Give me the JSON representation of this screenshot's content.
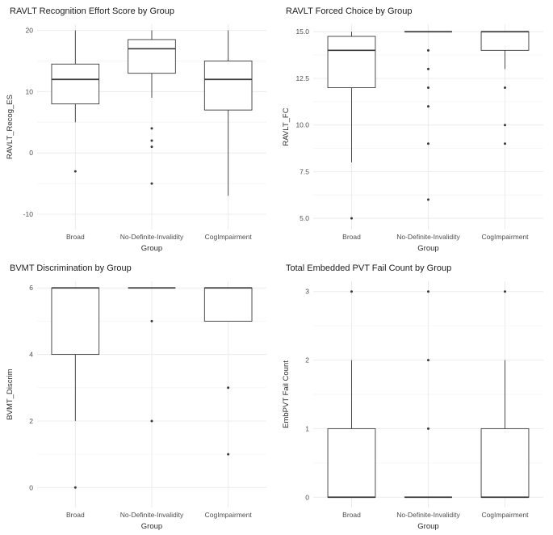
{
  "figure": {
    "background": "#ffffff"
  },
  "style": {
    "box_stroke": "#3a3a3a",
    "outlier_color": "#3a3a3a",
    "grid_color": "#ececec",
    "minor_grid_color": "#f6f6f6",
    "tick_color": "#4d4d4d",
    "axis_title_color": "#2b2b2b",
    "title_color": "#1d1d1d"
  },
  "chart_data": [
    {
      "type": "boxplot",
      "title": "RAVLT Recognition Effort Score by Group",
      "xlabel": "Group",
      "ylabel": "RAVLT_Recog_ES",
      "ylim": [
        -12.5,
        21
      ],
      "yticks": [
        -10,
        0,
        10,
        20
      ],
      "ytick_labels": [
        "-10",
        "0",
        "10",
        "20"
      ],
      "grid": true,
      "legend": false,
      "categories": [
        "Broad",
        "No-Definite-Invalidity",
        "CogImpairment"
      ],
      "boxes": [
        {
          "category": "Broad",
          "whisker_low": 5,
          "q1": 8,
          "median": 12,
          "q3": 14.5,
          "whisker_high": 20,
          "outliers": [
            -3
          ]
        },
        {
          "category": "No-Definite-Invalidity",
          "whisker_low": 9,
          "q1": 13,
          "median": 17,
          "q3": 18.5,
          "whisker_high": 20,
          "outliers": [
            4,
            2,
            1,
            -5
          ]
        },
        {
          "category": "CogImpairment",
          "whisker_low": -7,
          "q1": 7,
          "median": 12,
          "q3": 15,
          "whisker_high": 20,
          "outliers": []
        }
      ]
    },
    {
      "type": "boxplot",
      "title": "RAVLT Forced Choice by Group",
      "xlabel": "Group",
      "ylabel": "RAVLT_FC",
      "ylim": [
        4.4,
        15.4
      ],
      "yticks": [
        5,
        7.5,
        10,
        12.5,
        15
      ],
      "ytick_labels": [
        "5.0",
        "7.5",
        "10.0",
        "12.5",
        "15.0"
      ],
      "grid": true,
      "legend": false,
      "categories": [
        "Broad",
        "No-Definite-Invalidity",
        "CogImpairment"
      ],
      "boxes": [
        {
          "category": "Broad",
          "whisker_low": 8,
          "q1": 12,
          "median": 14,
          "q3": 14.75,
          "whisker_high": 15,
          "outliers": [
            5
          ]
        },
        {
          "category": "No-Definite-Invalidity",
          "whisker_low": 15,
          "q1": 15,
          "median": 15,
          "q3": 15,
          "whisker_high": 15,
          "outliers": [
            14,
            13,
            12,
            11,
            9,
            6
          ]
        },
        {
          "category": "CogImpairment",
          "whisker_low": 13,
          "q1": 14,
          "median": 15,
          "q3": 15,
          "whisker_high": 15,
          "outliers": [
            12,
            10,
            9
          ]
        }
      ]
    },
    {
      "type": "boxplot",
      "title": "BVMT Discrimination by Group",
      "xlabel": "Group",
      "ylabel": "BVMT_Discrim",
      "ylim": [
        -0.6,
        6.2
      ],
      "yticks": [
        0,
        2,
        4,
        6
      ],
      "ytick_labels": [
        "0",
        "2",
        "4",
        "6"
      ],
      "grid": true,
      "legend": false,
      "categories": [
        "Broad",
        "No-Definite-Invalidity",
        "CogImpairment"
      ],
      "boxes": [
        {
          "category": "Broad",
          "whisker_low": 2,
          "q1": 4,
          "median": 6,
          "q3": 6,
          "whisker_high": 6,
          "outliers": [
            0
          ]
        },
        {
          "category": "No-Definite-Invalidity",
          "whisker_low": 6,
          "q1": 6,
          "median": 6,
          "q3": 6,
          "whisker_high": 6,
          "outliers": [
            5,
            2
          ]
        },
        {
          "category": "CogImpairment",
          "whisker_low": 5,
          "q1": 5,
          "median": 6,
          "q3": 6,
          "whisker_high": 6,
          "outliers": [
            3,
            1
          ]
        }
      ]
    },
    {
      "type": "boxplot",
      "title": "Total Embedded PVT Fail Count by Group",
      "xlabel": "Group",
      "ylabel": "EmbPVT Fail Count",
      "ylim": [
        -0.15,
        3.15
      ],
      "yticks": [
        0,
        1,
        2,
        3
      ],
      "ytick_labels": [
        "0",
        "1",
        "2",
        "3"
      ],
      "grid": true,
      "legend": false,
      "categories": [
        "Broad",
        "No-Definite-Invalidity",
        "CogImpairment"
      ],
      "boxes": [
        {
          "category": "Broad",
          "whisker_low": 0,
          "q1": 0,
          "median": 0,
          "q3": 1,
          "whisker_high": 2,
          "outliers": [
            3
          ]
        },
        {
          "category": "No-Definite-Invalidity",
          "whisker_low": 0,
          "q1": 0,
          "median": 0,
          "q3": 0,
          "whisker_high": 0,
          "outliers": [
            1,
            2,
            3
          ]
        },
        {
          "category": "CogImpairment",
          "whisker_low": 0,
          "q1": 0,
          "median": 0,
          "q3": 1,
          "whisker_high": 2,
          "outliers": [
            3
          ]
        }
      ]
    }
  ]
}
